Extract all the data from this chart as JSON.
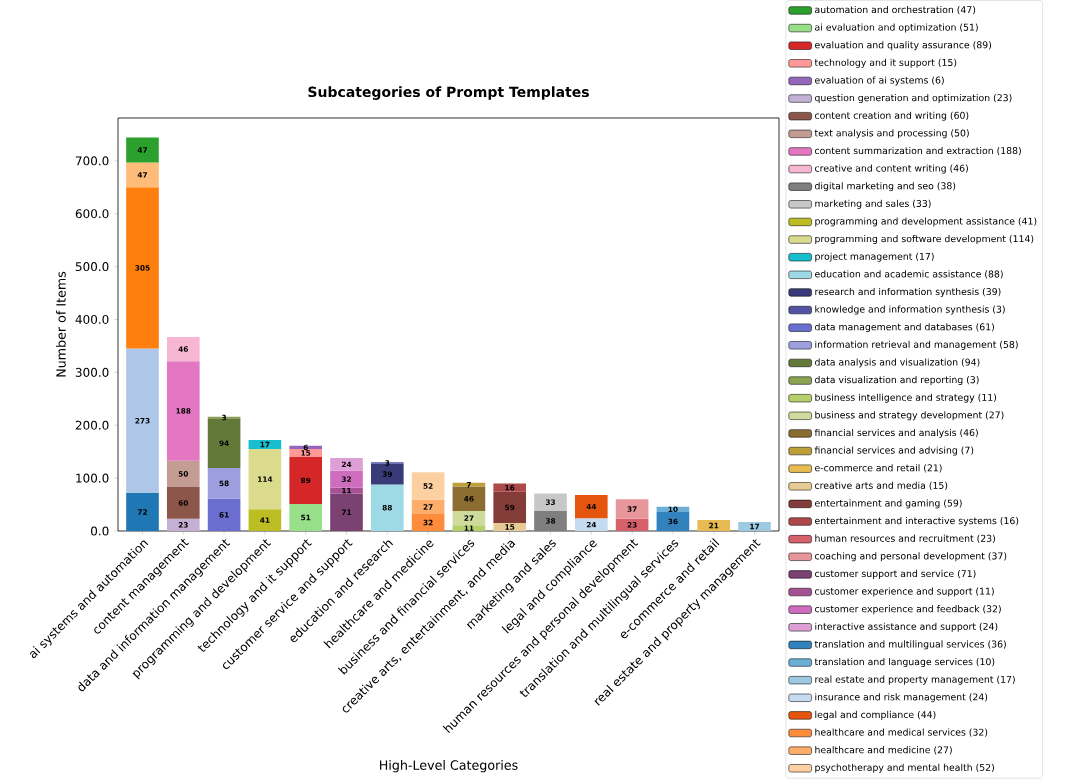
{
  "chart_data": {
    "type": "bar",
    "title": "Subcategories of Prompt Templates",
    "xlabel": "High-Level Categories",
    "ylabel": "Number of Items",
    "categories": [
      "ai systems and automation",
      "content management",
      "data and information management",
      "programming and development",
      "technology and it support",
      "customer service and support",
      "education and research",
      "healthcare and medicine",
      "business and financial services",
      "creative arts, entertainment, and media",
      "marketing and sales",
      "legal and compliance",
      "human resources and personal development",
      "translation and multilingual services",
      "e-commerce and retail",
      "real estate and property management"
    ],
    "stacked": true,
    "data_labels": true,
    "legend": "right",
    "ylim": [
      0,
      781
    ],
    "yticks": [
      {
        "value": 0,
        "label": "0.0"
      },
      {
        "value": 100,
        "label": "100.0"
      },
      {
        "value": 200,
        "label": "200.0"
      },
      {
        "value": 300,
        "label": "300.0"
      },
      {
        "value": 400,
        "label": "400.0"
      },
      {
        "value": 500,
        "label": "500.0"
      },
      {
        "value": 600,
        "label": "600.0"
      },
      {
        "value": 700,
        "label": "700.0"
      }
    ],
    "series": [
      {
        "color": "#1f77b4",
        "values": [
          72,
          null,
          null,
          null,
          null,
          null,
          null,
          null,
          null,
          null,
          null,
          null,
          null,
          null,
          null,
          null
        ]
      },
      {
        "color": "#aec7e8",
        "values": [
          273,
          null,
          null,
          null,
          null,
          null,
          null,
          null,
          null,
          null,
          null,
          null,
          null,
          null,
          null,
          null
        ]
      },
      {
        "color": "#ff7f0e",
        "values": [
          305,
          null,
          null,
          null,
          null,
          null,
          null,
          null,
          null,
          null,
          null,
          null,
          null,
          null,
          null,
          null
        ]
      },
      {
        "color": "#ffbb78",
        "values": [
          47,
          null,
          null,
          null,
          null,
          null,
          null,
          null,
          null,
          null,
          null,
          null,
          null,
          null,
          null,
          null
        ]
      },
      {
        "name": "automation and orchestration (47)",
        "color": "#2ca02c",
        "values": [
          47,
          null,
          null,
          null,
          null,
          null,
          null,
          null,
          null,
          null,
          null,
          null,
          null,
          null,
          null,
          null
        ]
      },
      {
        "name": "ai evaluation and optimization (51)",
        "color": "#98df8a",
        "values": [
          null,
          null,
          null,
          null,
          51,
          null,
          null,
          null,
          null,
          null,
          null,
          null,
          null,
          null,
          null,
          null
        ]
      },
      {
        "name": "evaluation and quality assurance (89)",
        "color": "#d62728",
        "values": [
          null,
          null,
          null,
          null,
          89,
          null,
          null,
          null,
          null,
          null,
          null,
          null,
          null,
          null,
          null,
          null
        ]
      },
      {
        "name": "technology and it support (15)",
        "color": "#ff9896",
        "values": [
          null,
          null,
          null,
          null,
          15,
          null,
          null,
          null,
          null,
          null,
          null,
          null,
          null,
          null,
          null,
          null
        ]
      },
      {
        "name": "evaluation of ai systems (6)",
        "color": "#9467bd",
        "values": [
          null,
          null,
          null,
          null,
          6,
          null,
          null,
          null,
          null,
          null,
          null,
          null,
          null,
          null,
          null,
          null
        ]
      },
      {
        "name": "question generation and optimization (23)",
        "color": "#c5b0d5",
        "values": [
          null,
          23,
          null,
          null,
          null,
          null,
          null,
          null,
          null,
          null,
          null,
          null,
          null,
          null,
          null,
          null
        ]
      },
      {
        "name": "content creation and writing (60)",
        "color": "#8c564b",
        "values": [
          null,
          60,
          null,
          null,
          null,
          null,
          null,
          null,
          null,
          null,
          null,
          null,
          null,
          null,
          null,
          null
        ]
      },
      {
        "name": "text analysis and processing (50)",
        "color": "#c49c94",
        "values": [
          null,
          50,
          null,
          null,
          null,
          null,
          null,
          null,
          null,
          null,
          null,
          null,
          null,
          null,
          null,
          null
        ]
      },
      {
        "name": "content summarization and extraction (188)",
        "color": "#e377c2",
        "values": [
          null,
          188,
          null,
          null,
          null,
          null,
          null,
          null,
          null,
          null,
          null,
          null,
          null,
          null,
          null,
          null
        ]
      },
      {
        "name": "creative and content writing (46)",
        "color": "#f7b6d2",
        "values": [
          null,
          46,
          null,
          null,
          null,
          null,
          null,
          null,
          null,
          null,
          null,
          null,
          null,
          null,
          null,
          null
        ]
      },
      {
        "name": "digital marketing and seo (38)",
        "color": "#7f7f7f",
        "values": [
          null,
          null,
          null,
          null,
          null,
          null,
          null,
          null,
          null,
          null,
          38,
          null,
          null,
          null,
          null,
          null
        ]
      },
      {
        "name": "marketing and sales (33)",
        "color": "#c7c7c7",
        "values": [
          null,
          null,
          null,
          null,
          null,
          null,
          null,
          null,
          null,
          null,
          33,
          null,
          null,
          null,
          null,
          null
        ]
      },
      {
        "name": "programming and development assistance (41)",
        "color": "#bcbd22",
        "values": [
          null,
          null,
          null,
          41,
          null,
          null,
          null,
          null,
          null,
          null,
          null,
          null,
          null,
          null,
          null,
          null
        ]
      },
      {
        "name": "programming and software development (114)",
        "color": "#dbdb8d",
        "values": [
          null,
          null,
          null,
          114,
          null,
          null,
          null,
          null,
          null,
          null,
          null,
          null,
          null,
          null,
          null,
          null
        ]
      },
      {
        "name": "project management (17)",
        "color": "#17becf",
        "values": [
          null,
          null,
          null,
          17,
          null,
          null,
          null,
          null,
          null,
          null,
          null,
          null,
          null,
          null,
          null,
          null
        ]
      },
      {
        "name": "education and academic assistance (88)",
        "color": "#9edae5",
        "values": [
          null,
          null,
          null,
          null,
          null,
          null,
          88,
          null,
          null,
          null,
          null,
          null,
          null,
          null,
          null,
          null
        ]
      },
      {
        "name": "research and information synthesis (39)",
        "color": "#393b79",
        "values": [
          null,
          null,
          null,
          null,
          null,
          null,
          39,
          null,
          null,
          null,
          null,
          null,
          null,
          null,
          null,
          null
        ]
      },
      {
        "name": "knowledge and information synthesis (3)",
        "color": "#5254a3",
        "values": [
          null,
          null,
          null,
          null,
          null,
          null,
          3,
          null,
          null,
          null,
          null,
          null,
          null,
          null,
          null,
          null
        ]
      },
      {
        "name": "data management and databases (61)",
        "color": "#6b6ecf",
        "values": [
          null,
          null,
          61,
          null,
          null,
          null,
          null,
          null,
          null,
          null,
          null,
          null,
          null,
          null,
          null,
          null
        ]
      },
      {
        "name": "information retrieval and management (58)",
        "color": "#9c9ede",
        "values": [
          null,
          null,
          58,
          null,
          null,
          null,
          null,
          null,
          null,
          null,
          null,
          null,
          null,
          null,
          null,
          null
        ]
      },
      {
        "name": "data analysis and visualization (94)",
        "color": "#637939",
        "values": [
          null,
          null,
          94,
          null,
          null,
          null,
          null,
          null,
          null,
          null,
          null,
          null,
          null,
          null,
          null,
          null
        ]
      },
      {
        "name": "data visualization and reporting (3)",
        "color": "#8ca252",
        "values": [
          null,
          null,
          3,
          null,
          null,
          null,
          null,
          null,
          null,
          null,
          null,
          null,
          null,
          null,
          null,
          null
        ]
      },
      {
        "name": "business intelligence and strategy (11)",
        "color": "#b5cf6b",
        "values": [
          null,
          null,
          null,
          null,
          null,
          null,
          null,
          null,
          11,
          null,
          null,
          null,
          null,
          null,
          null,
          null
        ]
      },
      {
        "name": "business and strategy development (27)",
        "color": "#cedb9c",
        "values": [
          null,
          null,
          null,
          null,
          null,
          null,
          null,
          null,
          27,
          null,
          null,
          null,
          null,
          null,
          null,
          null
        ]
      },
      {
        "name": "financial services and analysis (46)",
        "color": "#8c6d31",
        "values": [
          null,
          null,
          null,
          null,
          null,
          null,
          null,
          null,
          46,
          null,
          null,
          null,
          null,
          null,
          null,
          null
        ]
      },
      {
        "name": "financial services and advising (7)",
        "color": "#bd9e39",
        "values": [
          null,
          null,
          null,
          null,
          null,
          null,
          null,
          null,
          7,
          null,
          null,
          null,
          null,
          null,
          null,
          null
        ]
      },
      {
        "name": "e-commerce and retail (21)",
        "color": "#e7ba52",
        "values": [
          null,
          null,
          null,
          null,
          null,
          null,
          null,
          null,
          null,
          null,
          null,
          null,
          null,
          null,
          21,
          null
        ]
      },
      {
        "name": "creative arts and media (15)",
        "color": "#e7cb94",
        "values": [
          null,
          null,
          null,
          null,
          null,
          null,
          null,
          null,
          null,
          15,
          null,
          null,
          null,
          null,
          null,
          null
        ]
      },
      {
        "name": "entertainment and gaming (59)",
        "color": "#843c39",
        "values": [
          null,
          null,
          null,
          null,
          null,
          null,
          null,
          null,
          null,
          59,
          null,
          null,
          null,
          null,
          null,
          null
        ]
      },
      {
        "name": "entertainment and interactive systems (16)",
        "color": "#ad494a",
        "values": [
          null,
          null,
          null,
          null,
          null,
          null,
          null,
          null,
          null,
          16,
          null,
          null,
          null,
          null,
          null,
          null
        ]
      },
      {
        "name": "human resources and recruitment (23)",
        "color": "#d6616b",
        "values": [
          null,
          null,
          null,
          null,
          null,
          null,
          null,
          null,
          null,
          null,
          null,
          null,
          23,
          null,
          null,
          null
        ]
      },
      {
        "name": "coaching and personal development (37)",
        "color": "#e7969c",
        "values": [
          null,
          null,
          null,
          null,
          null,
          null,
          null,
          null,
          null,
          null,
          null,
          null,
          37,
          null,
          null,
          null
        ]
      },
      {
        "name": "customer support and service (71)",
        "color": "#7b4173",
        "values": [
          null,
          null,
          null,
          null,
          null,
          71,
          null,
          null,
          null,
          null,
          null,
          null,
          null,
          null,
          null,
          null
        ]
      },
      {
        "name": "customer experience and support (11)",
        "color": "#a55194",
        "values": [
          null,
          null,
          null,
          null,
          null,
          11,
          null,
          null,
          null,
          null,
          null,
          null,
          null,
          null,
          null,
          null
        ]
      },
      {
        "name": "customer experience and feedback (32)",
        "color": "#ce6dbd",
        "values": [
          null,
          null,
          null,
          null,
          null,
          32,
          null,
          null,
          null,
          null,
          null,
          null,
          null,
          null,
          null,
          null
        ]
      },
      {
        "name": "interactive assistance and support (24)",
        "color": "#de9ed6",
        "values": [
          null,
          null,
          null,
          null,
          null,
          24,
          null,
          null,
          null,
          null,
          null,
          null,
          null,
          null,
          null,
          null
        ]
      },
      {
        "name": "translation and multilingual services (36)",
        "color": "#3182bd",
        "values": [
          null,
          null,
          null,
          null,
          null,
          null,
          null,
          null,
          null,
          null,
          null,
          null,
          null,
          36,
          null,
          null
        ]
      },
      {
        "name": "translation and language services (10)",
        "color": "#6baed6",
        "values": [
          null,
          null,
          null,
          null,
          null,
          null,
          null,
          null,
          null,
          null,
          null,
          null,
          null,
          10,
          null,
          null
        ]
      },
      {
        "name": "real estate and property management (17)",
        "color": "#9ecae1",
        "values": [
          null,
          null,
          null,
          null,
          null,
          null,
          null,
          null,
          null,
          null,
          null,
          null,
          null,
          null,
          null,
          17
        ]
      },
      {
        "name": "insurance and risk management (24)",
        "color": "#c6dbef",
        "values": [
          null,
          null,
          null,
          null,
          null,
          null,
          null,
          null,
          null,
          null,
          null,
          24,
          null,
          null,
          null,
          null
        ]
      },
      {
        "name": "legal and compliance (44)",
        "color": "#e6550d",
        "values": [
          null,
          null,
          null,
          null,
          null,
          null,
          null,
          null,
          null,
          null,
          null,
          44,
          null,
          null,
          null,
          null
        ]
      },
      {
        "name": "healthcare and medical services (32)",
        "color": "#fd8d3c",
        "values": [
          null,
          null,
          null,
          null,
          null,
          null,
          null,
          32,
          null,
          null,
          null,
          null,
          null,
          null,
          null,
          null
        ]
      },
      {
        "name": "healthcare and medicine (27)",
        "color": "#fdae6b",
        "values": [
          null,
          null,
          null,
          null,
          null,
          null,
          null,
          27,
          null,
          null,
          null,
          null,
          null,
          null,
          null,
          null
        ]
      },
      {
        "name": "psychotherapy and mental health (52)",
        "color": "#fdd0a2",
        "values": [
          null,
          null,
          null,
          null,
          null,
          null,
          null,
          52,
          null,
          null,
          null,
          null,
          null,
          null,
          null,
          null
        ]
      }
    ]
  }
}
